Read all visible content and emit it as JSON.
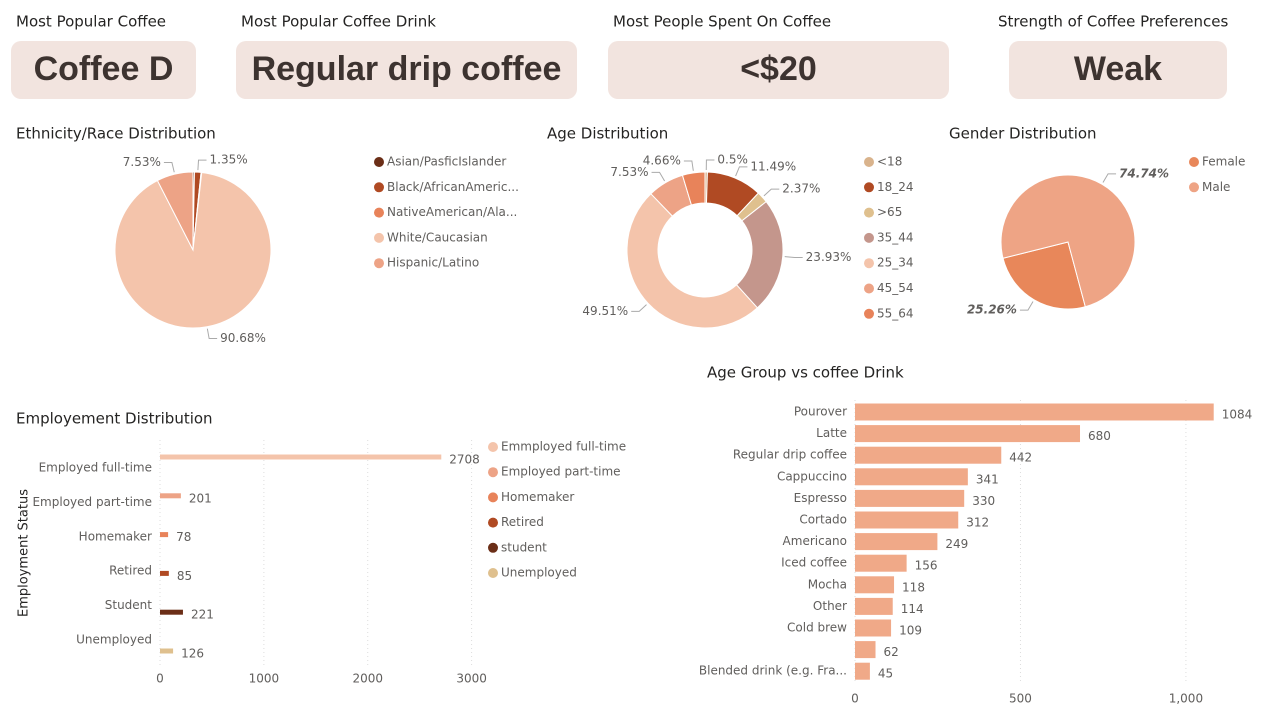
{
  "cards": [
    {
      "title": "Most Popular Coffee",
      "value": "Coffee D"
    },
    {
      "title": "Most Popular Coffee Drink",
      "value": "Regular drip coffee"
    },
    {
      "title": "Most People Spent On Coffee",
      "value": "<$20"
    },
    {
      "title": "Strength of Coffee Preferences",
      "value": "Weak"
    }
  ],
  "chart_data": [
    {
      "type": "pie",
      "title": "Ethnicity/Race Distribution",
      "categories": [
        "Asian/PasficIslander",
        "Black/AfricanAmeric...",
        "NativeAmerican/Ala...",
        "White/Caucasian",
        "Hispanic/Latino"
      ],
      "values": [
        0.3,
        1.35,
        0.14,
        90.68,
        7.53
      ],
      "value_labels": [
        null,
        "1.35%",
        null,
        "90.68%",
        "7.53%"
      ],
      "colors": [
        "#6b2e17",
        "#b04a23",
        "#e8835a",
        "#f4c4ab",
        "#eda386"
      ]
    },
    {
      "type": "donut",
      "title": "Age Distribution",
      "categories": [
        "<18",
        "18_24",
        ">65",
        "35_44",
        "25_34",
        "45_54",
        "55_64"
      ],
      "values": [
        0.5,
        11.49,
        2.37,
        23.93,
        49.51,
        7.53,
        4.66
      ],
      "value_labels": [
        "0.5%",
        "11.49%",
        "2.37%",
        "23.93%",
        "49.51%",
        "7.53%",
        "4.66%"
      ],
      "colors": [
        "#d9b38c",
        "#b04a23",
        "#dfc08e",
        "#c4968c",
        "#f4c4ab",
        "#eda386",
        "#e8835a"
      ]
    },
    {
      "type": "pie",
      "title": "Gender Distribution",
      "categories": [
        "Female",
        "Male"
      ],
      "values": [
        25.26,
        74.74
      ],
      "value_labels": [
        "25.26%",
        "74.74%"
      ],
      "colors": [
        "#e8875a",
        "#eea485"
      ]
    },
    {
      "type": "bar",
      "orientation": "horizontal",
      "title": "Employement Distribution",
      "ylabel": "Employment Status",
      "categories": [
        "Employed full-time",
        "Employed part-time",
        "Homemaker",
        "Retired",
        "Student",
        "Unemployed"
      ],
      "values": [
        2708,
        201,
        78,
        85,
        221,
        126
      ],
      "colors": [
        "#f4c4ab",
        "#eda386",
        "#e8835a",
        "#b04a23",
        "#6b2e17",
        "#dfc08e"
      ],
      "legend": [
        "Emmployed full-time",
        "Employed part-time",
        "Homemaker",
        "Retired",
        "student",
        "Unemployed"
      ],
      "xlim": [
        0,
        3100
      ],
      "xticks": [
        0,
        1000,
        2000,
        3000
      ],
      "grid": true
    },
    {
      "type": "bar",
      "orientation": "horizontal",
      "title": "Age Group vs coffee Drink",
      "categories": [
        "Pourover",
        "Latte",
        "Regular drip coffee",
        "Cappuccino",
        "Espresso",
        "Cortado",
        "Americano",
        "Iced coffee",
        "Mocha",
        "Other",
        "Cold brew",
        null,
        "Blended drink (e.g. Fra..."
      ],
      "values": [
        1084,
        680,
        442,
        341,
        330,
        312,
        249,
        156,
        118,
        114,
        109,
        62,
        45
      ],
      "color": "#f0a988",
      "xlim": [
        0,
        1100
      ],
      "xticks": [
        0,
        500,
        {
          "value": 1000,
          "label": "1,000"
        }
      ],
      "grid": true
    }
  ]
}
